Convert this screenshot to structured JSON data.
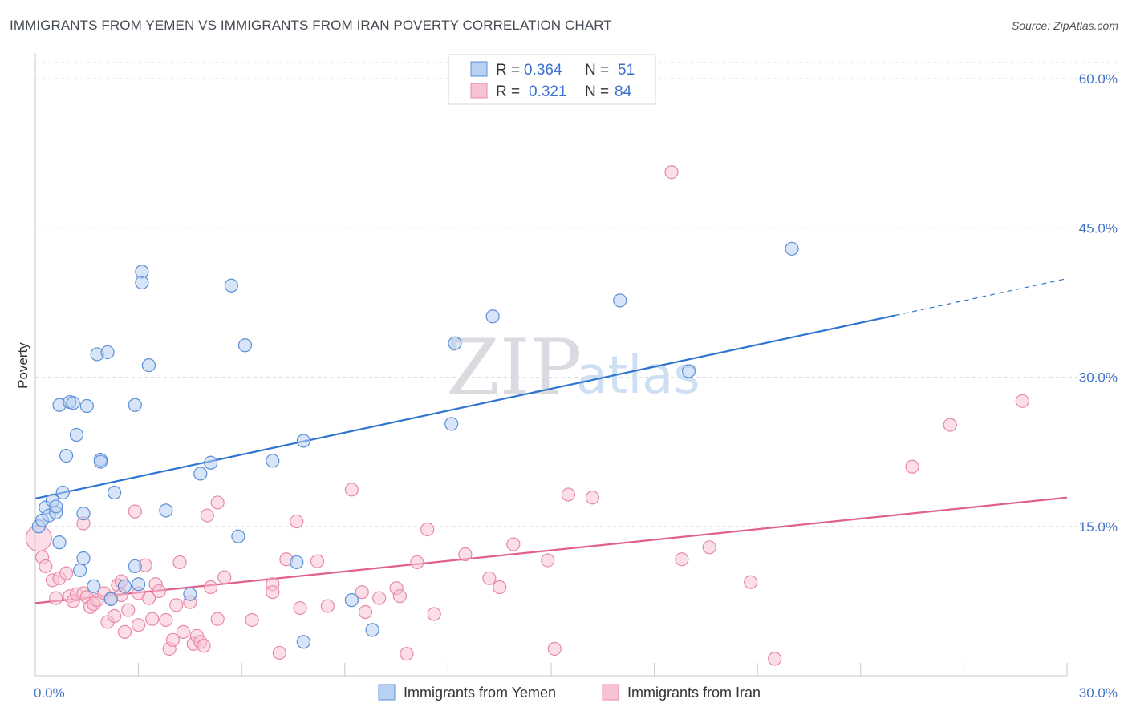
{
  "title": "IMMIGRANTS FROM YEMEN VS IMMIGRANTS FROM IRAN POVERTY CORRELATION CHART",
  "source": "Source: ZipAtlas.com",
  "watermark": {
    "zip": "ZIP",
    "atlas": "atlas"
  },
  "colors": {
    "yemen_fill": "#b8d0f2",
    "yemen_stroke": "#5b8fd6",
    "yemen_line": "#2f74d0",
    "iran_fill": "#f7c3d3",
    "iran_stroke": "#e889a8",
    "iran_line": "#e0608e",
    "tick_text": "#4472c4",
    "grid": "#dddddd"
  },
  "chart_data": {
    "type": "scatter",
    "ylabel": "Poverty",
    "xlim": [
      0,
      30
    ],
    "ylim": [
      0,
      60
    ],
    "x_tick_labels": [
      {
        "value": 0,
        "label": "0.0%"
      },
      {
        "value": 30,
        "label": "30.0%"
      }
    ],
    "y_tick_labels": [
      {
        "value": 15,
        "label": "15.0%"
      },
      {
        "value": 30,
        "label": "30.0%"
      },
      {
        "value": 45,
        "label": "45.0%"
      },
      {
        "value": 60,
        "label": "60.0%"
      }
    ],
    "legend_top": [
      {
        "series": "yemen",
        "r_label": "R =",
        "r_value": "0.364",
        "n_label": "N =",
        "n_value": "51"
      },
      {
        "series": "iran",
        "r_label": "R =",
        "r_value": "0.321",
        "n_label": "N =",
        "n_value": "84"
      }
    ],
    "series": [
      {
        "id": "yemen",
        "name": "Immigrants from Yemen",
        "trend": {
          "x0": 0,
          "y0": 17.8,
          "x1": 25,
          "y1": 36.2,
          "dash_x1": 30,
          "dash_y1": 39.9
        },
        "points": [
          [
            0.1,
            15.0
          ],
          [
            0.2,
            15.6
          ],
          [
            0.3,
            16.9
          ],
          [
            0.4,
            16.1
          ],
          [
            0.5,
            17.6
          ],
          [
            0.6,
            16.4
          ],
          [
            0.6,
            17.0
          ],
          [
            0.7,
            13.4
          ],
          [
            0.7,
            27.2
          ],
          [
            0.8,
            18.4
          ],
          [
            0.9,
            22.1
          ],
          [
            1.0,
            27.5
          ],
          [
            1.1,
            27.4
          ],
          [
            1.2,
            24.2
          ],
          [
            1.3,
            10.6
          ],
          [
            1.4,
            16.3
          ],
          [
            1.4,
            11.8
          ],
          [
            1.5,
            27.1
          ],
          [
            1.7,
            9.0
          ],
          [
            1.8,
            32.3
          ],
          [
            1.9,
            21.7
          ],
          [
            1.9,
            21.5
          ],
          [
            2.1,
            32.5
          ],
          [
            2.2,
            7.7
          ],
          [
            2.3,
            18.4
          ],
          [
            2.6,
            9.0
          ],
          [
            2.9,
            27.2
          ],
          [
            2.9,
            11.0
          ],
          [
            3.0,
            9.2
          ],
          [
            3.1,
            40.6
          ],
          [
            3.1,
            39.5
          ],
          [
            3.3,
            31.2
          ],
          [
            3.8,
            16.6
          ],
          [
            4.5,
            8.2
          ],
          [
            4.8,
            20.3
          ],
          [
            5.1,
            21.4
          ],
          [
            5.7,
            39.2
          ],
          [
            5.9,
            14.0
          ],
          [
            6.1,
            33.2
          ],
          [
            6.9,
            21.6
          ],
          [
            7.6,
            11.4
          ],
          [
            7.8,
            23.6
          ],
          [
            7.8,
            3.4
          ],
          [
            9.2,
            7.6
          ],
          [
            9.8,
            4.6
          ],
          [
            12.1,
            25.3
          ],
          [
            12.2,
            33.4
          ],
          [
            13.3,
            36.1
          ],
          [
            17.0,
            37.7
          ],
          [
            19.0,
            30.6
          ],
          [
            22.0,
            42.9
          ]
        ]
      },
      {
        "id": "iran",
        "name": "Immigrants from Iran",
        "trend": {
          "x0": 0,
          "y0": 7.3,
          "x1": 30,
          "y1": 17.9
        },
        "points": [
          [
            0.1,
            13.8
          ],
          [
            0.2,
            11.9
          ],
          [
            0.3,
            11.0
          ],
          [
            0.5,
            9.6
          ],
          [
            0.6,
            7.8
          ],
          [
            0.7,
            9.8
          ],
          [
            0.9,
            10.3
          ],
          [
            1.0,
            8.0
          ],
          [
            1.1,
            7.5
          ],
          [
            1.2,
            8.2
          ],
          [
            1.4,
            15.3
          ],
          [
            1.4,
            8.3
          ],
          [
            1.5,
            7.9
          ],
          [
            1.6,
            6.9
          ],
          [
            1.7,
            7.2
          ],
          [
            1.8,
            7.6
          ],
          [
            2.0,
            8.3
          ],
          [
            2.1,
            5.4
          ],
          [
            2.2,
            7.8
          ],
          [
            2.3,
            6.0
          ],
          [
            2.4,
            9.1
          ],
          [
            2.5,
            9.5
          ],
          [
            2.5,
            8.1
          ],
          [
            2.6,
            4.4
          ],
          [
            2.7,
            6.6
          ],
          [
            2.9,
            16.5
          ],
          [
            3.0,
            8.3
          ],
          [
            3.0,
            5.1
          ],
          [
            3.2,
            11.1
          ],
          [
            3.3,
            7.8
          ],
          [
            3.4,
            5.7
          ],
          [
            3.5,
            9.2
          ],
          [
            3.6,
            8.5
          ],
          [
            3.8,
            5.6
          ],
          [
            3.9,
            2.7
          ],
          [
            4.0,
            3.6
          ],
          [
            4.1,
            7.1
          ],
          [
            4.2,
            11.4
          ],
          [
            4.3,
            4.4
          ],
          [
            4.5,
            7.4
          ],
          [
            4.6,
            3.2
          ],
          [
            4.7,
            4.0
          ],
          [
            4.8,
            3.4
          ],
          [
            4.9,
            3.0
          ],
          [
            5.0,
            16.1
          ],
          [
            5.1,
            8.9
          ],
          [
            5.3,
            5.7
          ],
          [
            5.3,
            17.4
          ],
          [
            5.5,
            9.9
          ],
          [
            6.3,
            5.6
          ],
          [
            6.9,
            9.2
          ],
          [
            6.9,
            8.4
          ],
          [
            7.1,
            2.3
          ],
          [
            7.3,
            11.7
          ],
          [
            7.6,
            15.5
          ],
          [
            7.7,
            6.8
          ],
          [
            8.2,
            11.5
          ],
          [
            8.5,
            7.0
          ],
          [
            9.2,
            18.7
          ],
          [
            9.5,
            8.4
          ],
          [
            9.6,
            6.4
          ],
          [
            10.0,
            7.8
          ],
          [
            10.5,
            8.8
          ],
          [
            10.6,
            8.0
          ],
          [
            10.8,
            2.2
          ],
          [
            11.1,
            11.4
          ],
          [
            11.4,
            14.7
          ],
          [
            11.6,
            6.2
          ],
          [
            12.5,
            12.2
          ],
          [
            13.2,
            9.8
          ],
          [
            13.5,
            8.9
          ],
          [
            13.9,
            13.2
          ],
          [
            14.9,
            11.6
          ],
          [
            15.1,
            2.7
          ],
          [
            15.5,
            18.2
          ],
          [
            16.2,
            17.9
          ],
          [
            18.5,
            50.6
          ],
          [
            18.8,
            11.7
          ],
          [
            19.6,
            12.9
          ],
          [
            20.8,
            9.4
          ],
          [
            21.5,
            1.7
          ],
          [
            25.5,
            21.0
          ],
          [
            26.6,
            25.2
          ],
          [
            28.7,
            27.6
          ]
        ]
      }
    ]
  }
}
